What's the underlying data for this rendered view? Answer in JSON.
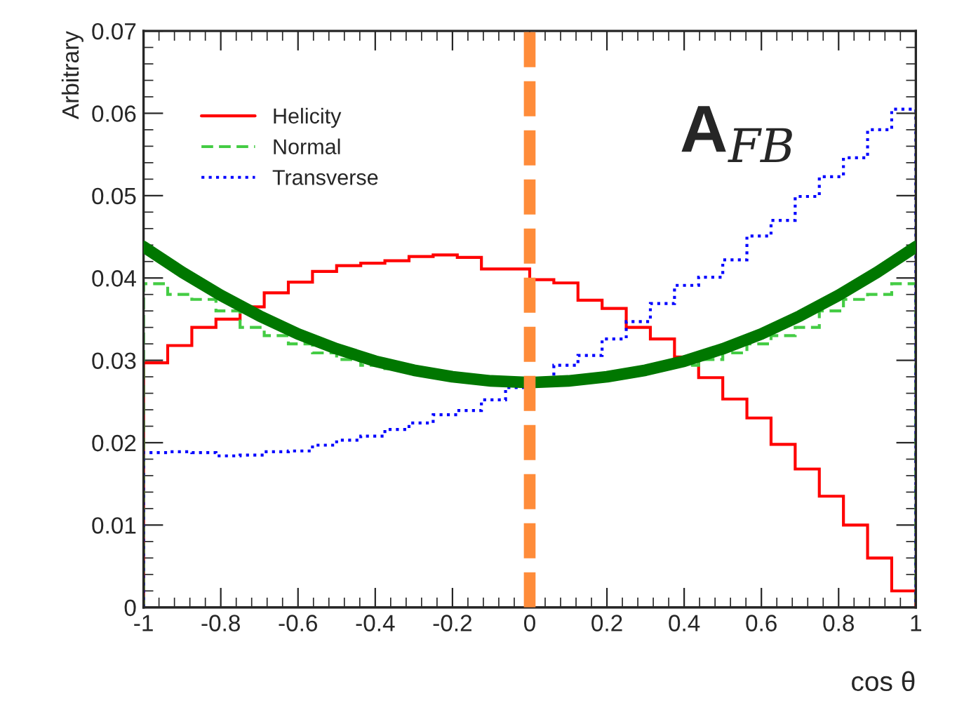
{
  "chart_data": {
    "type": "histogram",
    "xlabel": "cos θ",
    "ylabel": "Arbitrary",
    "bins": [
      -1,
      -0.9375,
      -0.875,
      -0.8125,
      -0.75,
      -0.6875,
      -0.625,
      -0.5625,
      -0.5,
      -0.4375,
      -0.375,
      -0.3125,
      -0.25,
      -0.1875,
      -0.125,
      -0.0625,
      0,
      0.0625,
      0.125,
      0.1875,
      0.25,
      0.3125,
      0.375,
      0.4375,
      0.5,
      0.5625,
      0.625,
      0.6875,
      0.75,
      0.8125,
      0.875,
      0.9375,
      1
    ],
    "series": [
      {
        "name": "Helicity",
        "color": "#ff0000",
        "line_style": "solid",
        "values": [
          0.0297,
          0.0318,
          0.034,
          0.035,
          0.0365,
          0.0382,
          0.0395,
          0.0408,
          0.0415,
          0.0418,
          0.0421,
          0.0426,
          0.0428,
          0.0425,
          0.0411,
          0.0411,
          0.0398,
          0.0394,
          0.0373,
          0.0363,
          0.034,
          0.0326,
          0.0304,
          0.0279,
          0.0253,
          0.023,
          0.0198,
          0.0168,
          0.0135,
          0.01,
          0.006,
          0.002
        ]
      },
      {
        "name": "Normal",
        "color": "#44cc44",
        "line_style": "dashed",
        "values": [
          0.0393,
          0.038,
          0.0374,
          0.036,
          0.034,
          0.033,
          0.032,
          0.0309,
          0.0301,
          0.0294,
          0.029,
          0.0286,
          0.0282,
          0.0279,
          0.0277,
          0.0276,
          0.0276,
          0.0277,
          0.0279,
          0.0282,
          0.0286,
          0.029,
          0.0294,
          0.0301,
          0.0309,
          0.032,
          0.033,
          0.034,
          0.036,
          0.0374,
          0.038,
          0.0393
        ]
      },
      {
        "name": "Transverse",
        "color": "#0000ff",
        "line_style": "dotted",
        "values": [
          0.0188,
          0.0189,
          0.0188,
          0.0184,
          0.0185,
          0.0189,
          0.019,
          0.0197,
          0.0203,
          0.0208,
          0.0216,
          0.0224,
          0.0234,
          0.0239,
          0.0252,
          0.0267,
          0.0277,
          0.0294,
          0.0306,
          0.0326,
          0.0347,
          0.0369,
          0.0391,
          0.0401,
          0.0422,
          0.0451,
          0.047,
          0.0499,
          0.0523,
          0.0546,
          0.058,
          0.0605
        ]
      },
      {
        "type": "line",
        "color": "#007700",
        "line_style": "solid",
        "x": [
          -1,
          -0.9,
          -0.8,
          -0.7,
          -0.6,
          -0.5,
          -0.4,
          -0.3,
          -0.2,
          -0.1,
          0,
          0.1,
          0.2,
          0.3,
          0.4,
          0.5,
          0.6,
          0.7,
          0.8,
          0.9,
          1
        ],
        "values": [
          0.0438,
          0.0407,
          0.0379,
          0.0354,
          0.0332,
          0.0314,
          0.0299,
          0.0288,
          0.028,
          0.0275,
          0.0273,
          0.0275,
          0.028,
          0.0288,
          0.0299,
          0.0314,
          0.0332,
          0.0354,
          0.0379,
          0.0407,
          0.0438
        ]
      }
    ],
    "ref_lines": [
      {
        "axis": "x",
        "value": 0,
        "color": "#ff8c3a",
        "line_style": "dashed"
      }
    ],
    "annotations": [
      "A$_{FB}$"
    ],
    "xlim": [
      -1,
      1
    ],
    "ylim": [
      0,
      0.07
    ],
    "xticks": [
      -1,
      -0.8,
      -0.6,
      -0.4,
      -0.2,
      0,
      0.2,
      0.4,
      0.6,
      0.8,
      1
    ],
    "yticks": [
      0,
      0.01,
      0.02,
      0.03,
      0.04,
      0.05,
      0.06,
      0.07
    ],
    "legend": "top left",
    "grid": false
  }
}
